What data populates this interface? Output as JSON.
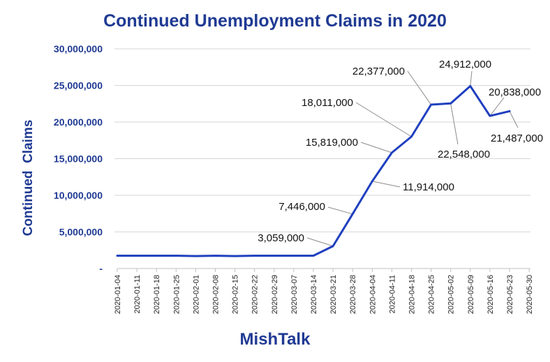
{
  "chart_data": {
    "type": "line",
    "title": "Continued Unemployment Claims in 2020",
    "ylabel": "Continued  Claims",
    "xlabel": "",
    "ylim": [
      0,
      30000000
    ],
    "yticks": [
      {
        "value": 0,
        "label": "-"
      },
      {
        "value": 5000000,
        "label": "5,000,000"
      },
      {
        "value": 10000000,
        "label": "10,000,000"
      },
      {
        "value": 15000000,
        "label": "15,000,000"
      },
      {
        "value": 20000000,
        "label": "20,000,000"
      },
      {
        "value": 25000000,
        "label": "25,000,000"
      },
      {
        "value": 30000000,
        "label": "30,000,000"
      }
    ],
    "grid": true,
    "legend": "none",
    "series_color": "#1f3fbf",
    "categories": [
      "2020-01-04",
      "2020-01-11",
      "2020-01-18",
      "2020-01-25",
      "2020-02-01",
      "2020-02-08",
      "2020-02-15",
      "2020-02-22",
      "2020-02-29",
      "2020-03-07",
      "2020-03-14",
      "2020-03-21",
      "2020-03-28",
      "2020-04-04",
      "2020-04-11",
      "2020-04-18",
      "2020-04-25",
      "2020-05-02",
      "2020-05-09",
      "2020-05-16",
      "2020-05-23",
      "2020-05-30"
    ],
    "values": [
      1750000,
      1750000,
      1750000,
      1750000,
      1700000,
      1750000,
      1700000,
      1750000,
      1750000,
      1750000,
      1750000,
      3059000,
      7446000,
      11914000,
      15819000,
      18011000,
      22377000,
      22548000,
      24912000,
      20838000,
      21487000,
      null
    ],
    "annotations": [
      {
        "index": 11,
        "label": "3,059,000"
      },
      {
        "index": 12,
        "label": "7,446,000"
      },
      {
        "index": 13,
        "label": "11,914,000"
      },
      {
        "index": 14,
        "label": "15,819,000"
      },
      {
        "index": 15,
        "label": "18,011,000"
      },
      {
        "index": 16,
        "label": "22,377,000"
      },
      {
        "index": 17,
        "label": "22,548,000"
      },
      {
        "index": 18,
        "label": "24,912,000"
      },
      {
        "index": 19,
        "label": "20,838,000"
      },
      {
        "index": 20,
        "label": "21,487,000"
      }
    ]
  },
  "footer": {
    "brand": "MishTalk"
  }
}
